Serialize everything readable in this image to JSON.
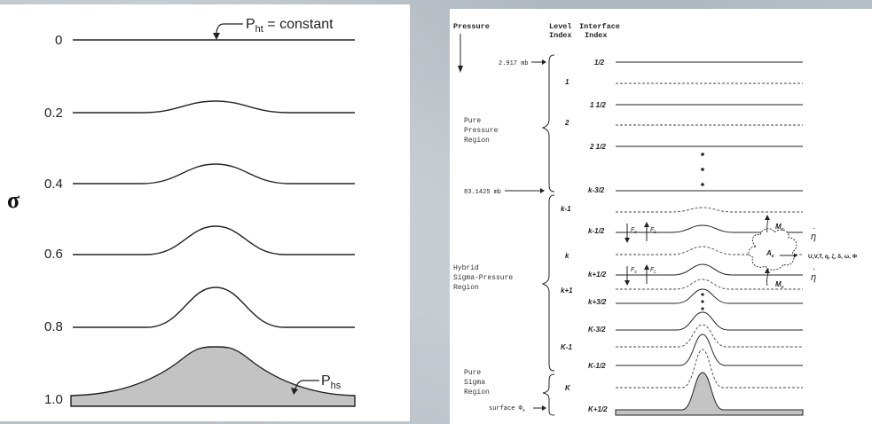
{
  "left": {
    "axis_symbol": "σ",
    "levels": [
      "0",
      "0.2",
      "0.4",
      "0.6",
      "0.8",
      "1.0"
    ],
    "top_label": "P",
    "top_label_sub": "ht",
    "top_label_rest": " = constant",
    "bottom_label": "P",
    "bottom_label_sub": "hs"
  },
  "right": {
    "headers": {
      "pressure": "Pressure",
      "level": "Level",
      "level2": "Index",
      "interface": "Interface",
      "interface2": "Index"
    },
    "top_pressure": "2.917 mb",
    "mid_pressure": "83.1425 mb",
    "surface_label": "surface Φ",
    "surface_sub": "s",
    "regions": {
      "pure_pressure": [
        "Pure",
        "Pressure",
        "Region"
      ],
      "hybrid": [
        "Hybrid",
        "Sigma-Pressure",
        "Region"
      ],
      "pure_sigma": [
        "Pure",
        "Sigma",
        "Region"
      ]
    },
    "interface_labels": [
      "1/2",
      "1 1/2",
      "2 1/2",
      "k-3/2",
      "k-1/2",
      "k+1/2",
      "k+3/2",
      "K-3/2",
      "K-1/2",
      "K+1/2"
    ],
    "level_labels": [
      "1",
      "2",
      "k-1",
      "k",
      "k+1",
      "K-1",
      "K"
    ],
    "flux": {
      "fs": "F",
      "fs_sub": "s",
      "fl": "F",
      "fl_sub": "L",
      "mc": "M",
      "mc_sub": "c",
      "ac": "A",
      "ac_sub": "c",
      "eta": "η",
      "eta_dot": "·",
      "vars": "U,V,T, q, ζ, δ, ω, Φ"
    }
  }
}
